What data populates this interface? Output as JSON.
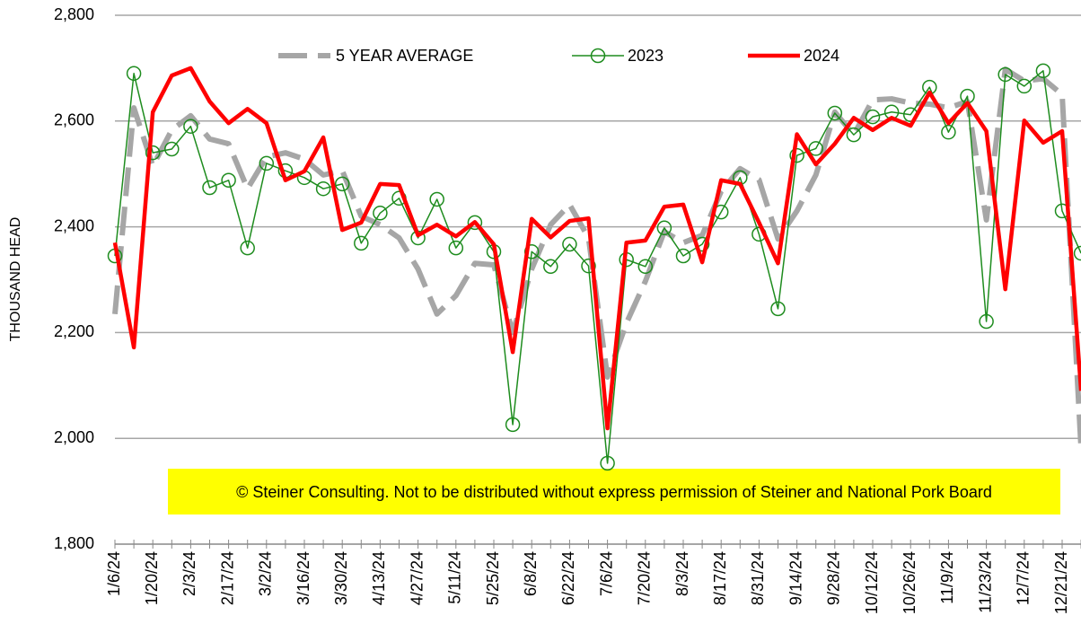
{
  "chart_data": {
    "type": "line",
    "y_label": "THOUSAND HEAD",
    "annotation": "© Steiner Consulting.  Not to be distributed without express permission of Steiner and National Pork Board",
    "categories": [
      "1/6/24",
      null,
      "1/20/24",
      null,
      "2/3/24",
      null,
      "2/17/24",
      null,
      "3/2/24",
      null,
      "3/16/24",
      null,
      "3/30/24",
      null,
      "4/13/24",
      null,
      "4/27/24",
      null,
      "5/11/24",
      null,
      "5/25/24",
      null,
      "6/8/24",
      null,
      "6/22/24",
      null,
      "7/6/24",
      null,
      "7/20/24",
      null,
      "8/3/24",
      null,
      "8/17/24",
      null,
      "8/31/24",
      null,
      "9/14/24",
      null,
      "9/28/24",
      null,
      "10/12/24",
      null,
      "10/26/24",
      null,
      "11/9/24",
      null,
      "11/23/24",
      null,
      "12/7/24",
      null,
      "12/21/24",
      null
    ],
    "series": [
      {
        "name": "5 YEAR AVERAGE",
        "color": "#a6a6a6",
        "line_style": "dashed",
        "values": [
          2235,
          2625,
          2515,
          2583,
          2610,
          2566,
          2557,
          2472,
          2532,
          2540,
          2528,
          2498,
          2506,
          2420,
          2404,
          2379,
          2320,
          2235,
          2270,
          2331,
          2328,
          2200,
          2320,
          2404,
          2442,
          2379,
          2116,
          2218,
          2297,
          2391,
          2370,
          2384,
          2467,
          2510,
          2489,
          2377,
          2430,
          2498,
          2617,
          2574,
          2640,
          2642,
          2634,
          2632,
          2625,
          2637,
          2413,
          2698,
          2676,
          2680,
          2650,
          1980
        ]
      },
      {
        "name": "2023",
        "color": "#1e8c1e",
        "line_style": "solid",
        "marker": "circle",
        "values": [
          2345,
          2690,
          2540,
          2547,
          2590,
          2474,
          2488,
          2360,
          2520,
          2506,
          2493,
          2472,
          2481,
          2369,
          2426,
          2454,
          2379,
          2452,
          2360,
          2408,
          2353,
          2026,
          2353,
          2325,
          2367,
          2326,
          1953,
          2338,
          2325,
          2398,
          2345,
          2367,
          2428,
          2493,
          2386,
          2245,
          2535,
          2548,
          2615,
          2574,
          2608,
          2617,
          2612,
          2664,
          2579,
          2647,
          2221,
          2688,
          2666,
          2695,
          2430,
          2350
        ]
      },
      {
        "name": "2024",
        "color": "#ff0000",
        "line_style": "solid",
        "values": [
          2370,
          2172,
          2617,
          2686,
          2700,
          2637,
          2596,
          2623,
          2596,
          2488,
          2505,
          2569,
          2394,
          2408,
          2481,
          2479,
          2384,
          2404,
          2382,
          2409,
          2367,
          2163,
          2415,
          2380,
          2411,
          2416,
          2019,
          2370,
          2374,
          2438,
          2442,
          2333,
          2488,
          2481,
          2408,
          2331,
          2575,
          2518,
          2557,
          2606,
          2583,
          2606,
          2591,
          2654,
          2596,
          2634,
          2581,
          2282,
          2601,
          2559,
          2581,
          2090
        ]
      }
    ],
    "ylim": [
      1800,
      2800
    ],
    "yticks": [
      {
        "value": 1800,
        "label": "1,800"
      },
      {
        "value": 2000,
        "label": "2,000"
      },
      {
        "value": 2200,
        "label": "2,200"
      },
      {
        "value": 2400,
        "label": "2,400"
      },
      {
        "value": 2600,
        "label": "2,600"
      },
      {
        "value": 2800,
        "label": "2,800"
      }
    ],
    "grid": true,
    "legend": "top"
  }
}
